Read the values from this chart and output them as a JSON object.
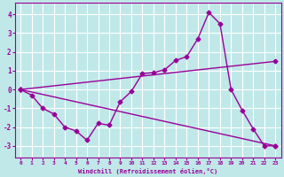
{
  "xlabel": "Windchill (Refroidissement éolien,°C)",
  "background_color": "#c0e8e8",
  "line_color": "#990099",
  "grid_color": "#ffffff",
  "xlim": [
    -0.5,
    23.5
  ],
  "ylim": [
    -3.6,
    4.6
  ],
  "yticks": [
    -3,
    -2,
    -1,
    0,
    1,
    2,
    3,
    4
  ],
  "xticks": [
    0,
    1,
    2,
    3,
    4,
    5,
    6,
    7,
    8,
    9,
    10,
    11,
    12,
    13,
    14,
    15,
    16,
    17,
    18,
    19,
    20,
    21,
    22,
    23
  ],
  "line1_x": [
    0,
    1,
    2,
    3,
    4,
    5,
    6,
    7,
    8,
    9,
    10,
    11,
    12,
    13,
    14,
    15,
    16,
    17,
    18,
    19,
    20,
    21,
    22,
    23
  ],
  "line1_y": [
    0.0,
    -0.3,
    -1.0,
    -1.3,
    -2.0,
    -2.2,
    -2.7,
    -1.8,
    -1.9,
    -0.65,
    -0.1,
    0.85,
    0.9,
    1.05,
    1.55,
    1.75,
    2.7,
    4.1,
    3.5,
    0.0,
    -1.1,
    -2.1,
    -3.0,
    -3.0
  ],
  "line2_x": [
    0,
    23
  ],
  "line2_y": [
    0.0,
    -3.0
  ],
  "line3_x": [
    0,
    23
  ],
  "line3_y": [
    0.0,
    1.5
  ],
  "marker": "D",
  "marker_size": 2.5,
  "linewidth": 1.0
}
